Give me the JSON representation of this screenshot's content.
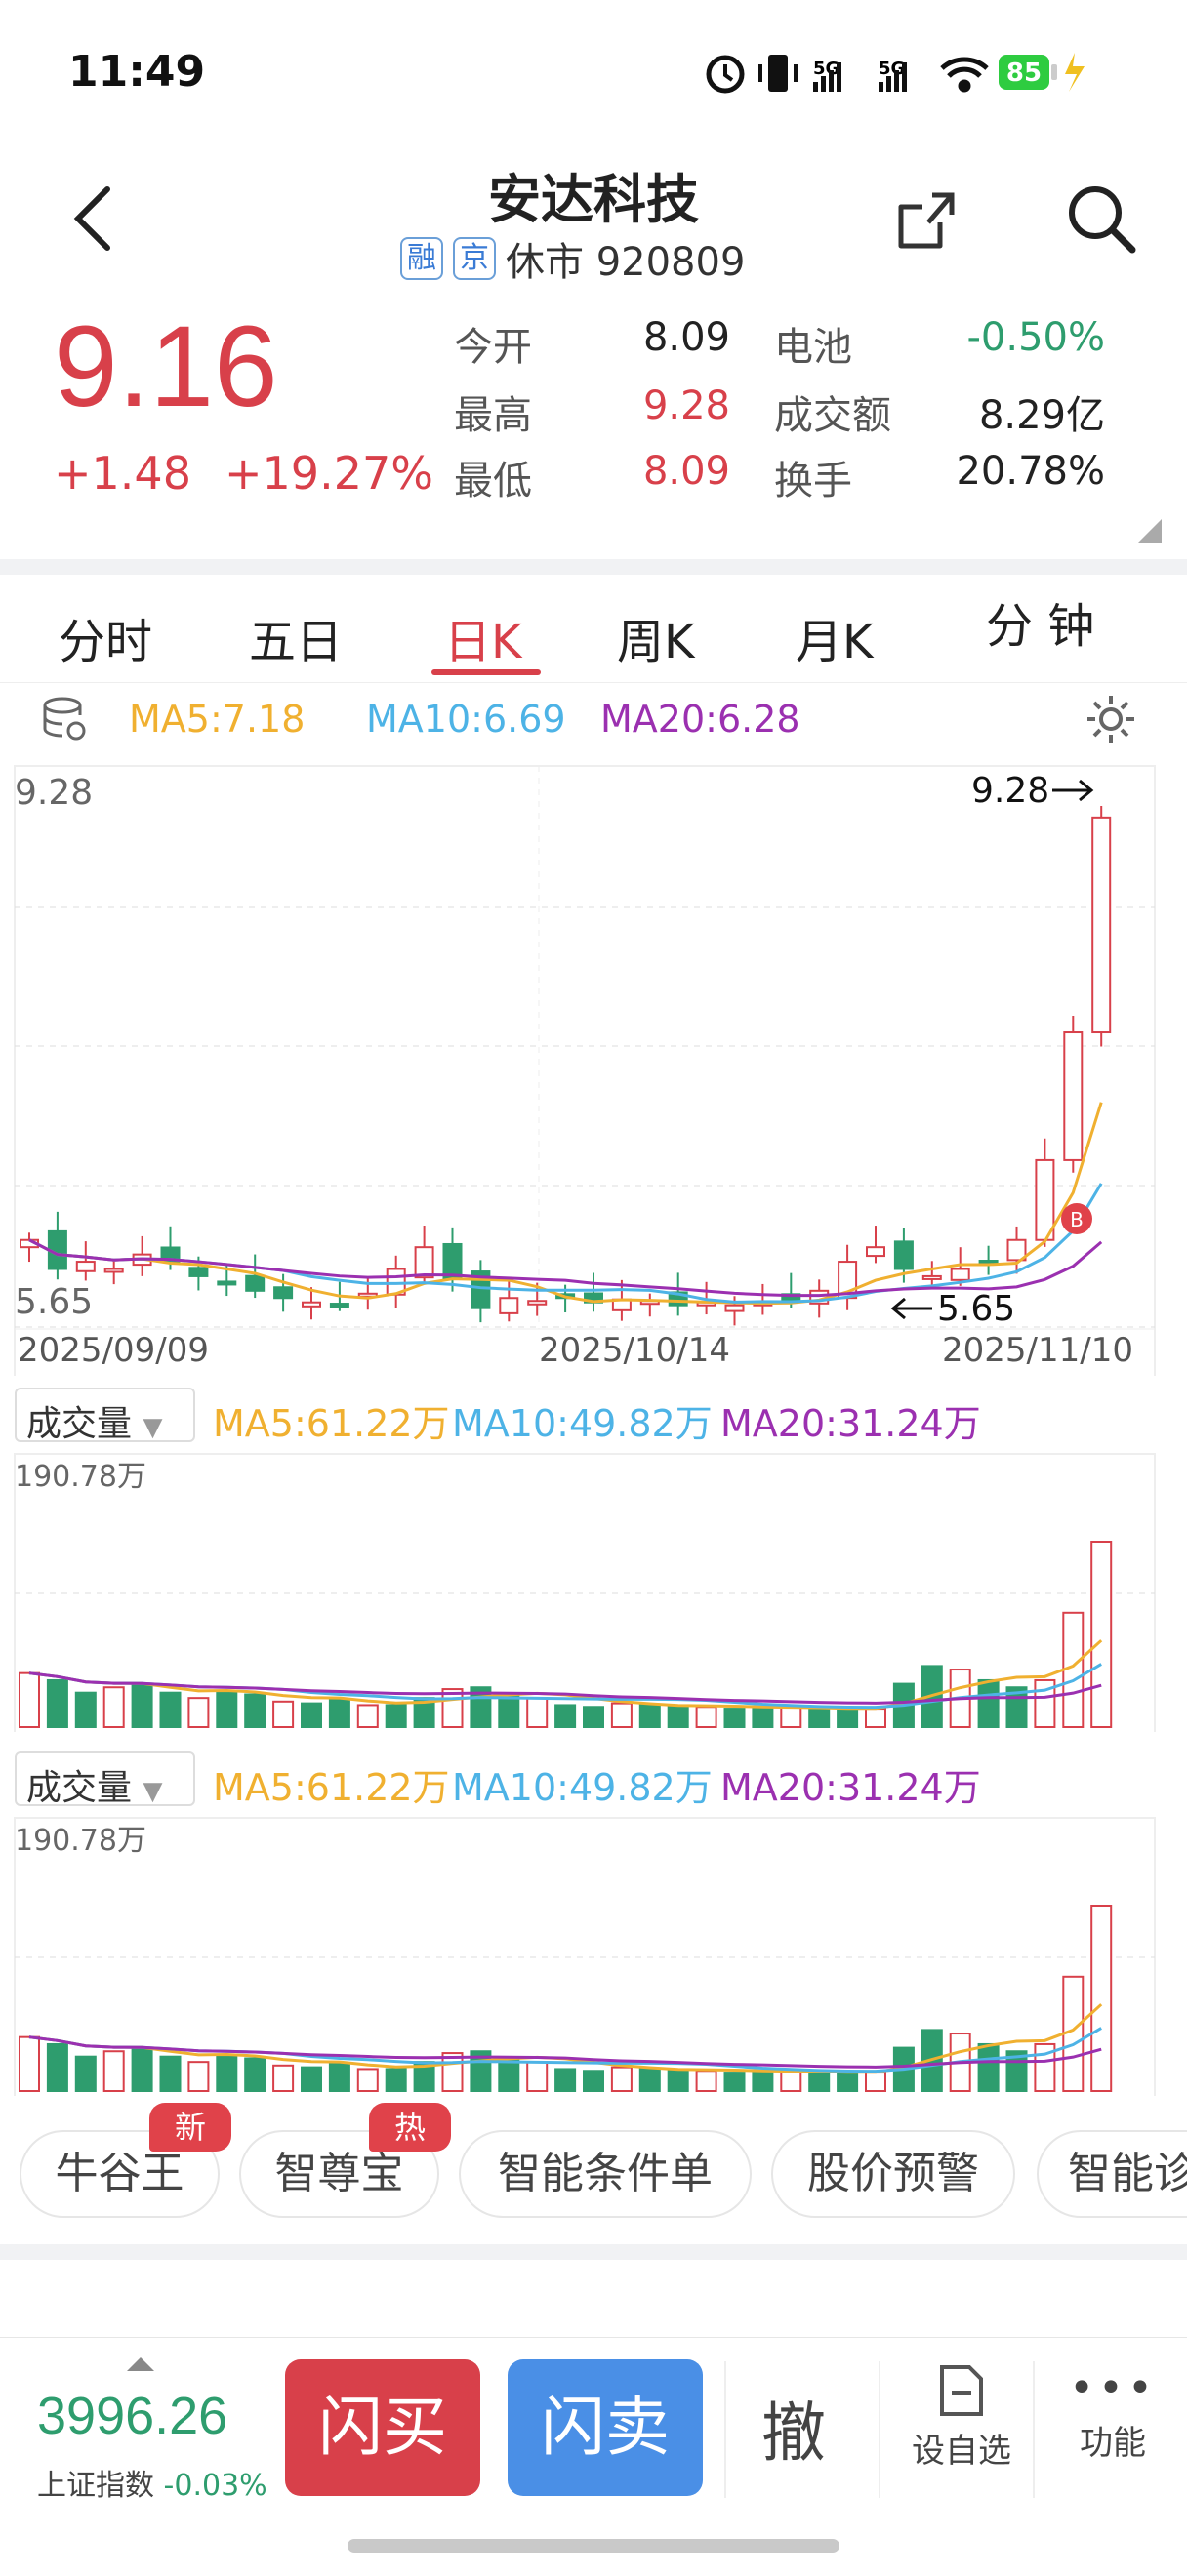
{
  "status": {
    "time": "11:49",
    "battery": "85",
    "signal1": "5G",
    "signal2": "5G"
  },
  "header": {
    "title": "安达科技",
    "tag1": "融",
    "tag2": "京",
    "status_text": "休市 920809"
  },
  "quote": {
    "price": "9.16",
    "change": "+1.48",
    "change_pct": "+19.27%",
    "open_label": "今开",
    "open": "8.09",
    "battery_label": "电池",
    "battery_pct": "-0.50%",
    "high_label": "最高",
    "high": "9.28",
    "amount_label": "成交额",
    "amount": "8.29亿",
    "low_label": "最低",
    "low": "8.09",
    "turnover_label": "换手",
    "turnover": "20.78%"
  },
  "tabs": [
    "分时",
    "五日",
    "日K",
    "周K",
    "月K",
    "分 钟"
  ],
  "kline": {
    "ma5": "MA5:7.18",
    "ma10": "MA10:6.69",
    "ma20": "MA20:6.28",
    "top_price": "9.28",
    "bottom_price": "5.65",
    "high_marker": "9.28",
    "low_marker": "5.65",
    "date1": "2025/09/09",
    "date2": "2025/10/14",
    "date3": "2025/11/10",
    "buy_marker": "B"
  },
  "volume": {
    "selector": "成交量",
    "ma5": "MA5:61.22万",
    "ma10": "MA10:49.82万",
    "ma20": "MA20:31.24万",
    "max": "190.78万"
  },
  "volume2": {
    "selector": "成交量",
    "ma5": "MA5:61.22万",
    "ma10": "MA10:49.82万",
    "ma20": "MA20:31.24万",
    "max": "190.78万"
  },
  "chips": [
    {
      "label": "牛谷王",
      "badge": "新"
    },
    {
      "label": "智尊宝",
      "badge": "热"
    },
    {
      "label": "智能条件单"
    },
    {
      "label": "股价预警"
    },
    {
      "label": "智能诊"
    }
  ],
  "bottom": {
    "index_value": "3996.26",
    "index_name": "上证指数",
    "index_change": "-0.03%",
    "buy": "闪买",
    "sell": "闪卖",
    "cancel": "撤",
    "watch": "设自选",
    "more": "功能"
  },
  "colors": {
    "up": "#d8404a",
    "down": "#2e9d6e",
    "ma5": "#f0b030",
    "ma10": "#4db3e6",
    "ma20": "#9b30b0"
  }
}
